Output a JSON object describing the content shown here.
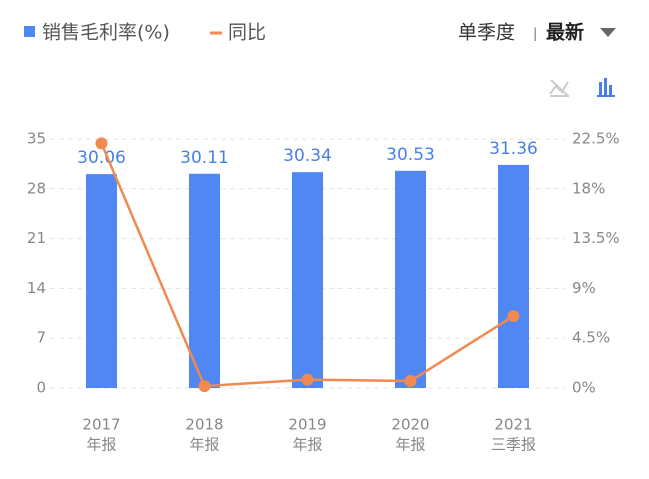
{
  "chart_data": {
    "type": "bar_line",
    "legend": {
      "bar": "销售毛利率(%)",
      "line": "同比"
    },
    "controls": {
      "period": "单季度",
      "separator": "|",
      "selection": "最新"
    },
    "categories": [
      [
        "2017",
        "年报"
      ],
      [
        "2018",
        "年报"
      ],
      [
        "2019",
        "年报"
      ],
      [
        "2020",
        "年报"
      ],
      [
        "2021",
        "三季报"
      ]
    ],
    "series": [
      {
        "name": "销售毛利率(%)",
        "color": "#5087f2",
        "values": [
          30.06,
          30.11,
          30.34,
          30.53,
          31.36
        ]
      },
      {
        "name": "同比",
        "color": "#f08a50",
        "axis": "y2",
        "values": [
          22.1,
          0.17,
          0.76,
          0.63,
          6.5
        ]
      }
    ],
    "ylim": [
      0,
      35
    ],
    "yticks": [
      0,
      7,
      14,
      21,
      28,
      35
    ],
    "y2lim": [
      0,
      22.5
    ],
    "y2ticks": [
      {
        "value": 0,
        "label": "0%"
      },
      {
        "value": 4.5,
        "label": "4.5%"
      },
      {
        "value": 9,
        "label": "9%"
      },
      {
        "value": 13.5,
        "label": "13.5%"
      },
      {
        "value": 18,
        "label": "18%"
      },
      {
        "value": 22.5,
        "label": "22.5%"
      }
    ],
    "grid": true
  }
}
